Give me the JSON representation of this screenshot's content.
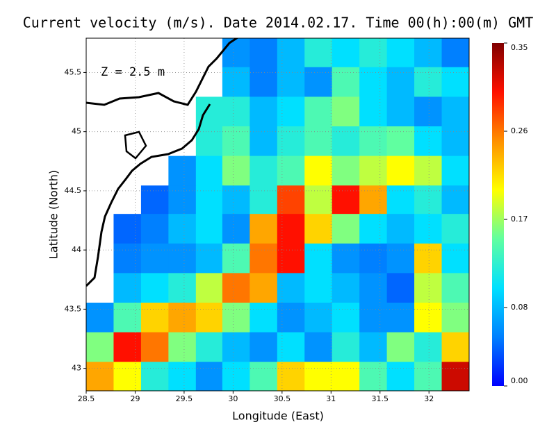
{
  "chart_data": {
    "type": "heatmap",
    "title": "Current velocity (m/s). Date 2014.02.17. Time 00(h):00(m) GMT",
    "annotation": "Z = 2.5 m",
    "x_label": "Longitude (East)",
    "y_label": "Latitude (North)",
    "xlim": [
      28.5,
      32.41
    ],
    "ylim": [
      42.81,
      45.79
    ],
    "xticks": [
      28.5,
      29,
      29.5,
      30,
      30.5,
      31,
      31.5,
      32
    ],
    "yticks": [
      43,
      43.5,
      44,
      44.5,
      45,
      45.5
    ],
    "grid": true,
    "x": [
      28.64,
      28.92,
      29.2,
      29.48,
      29.76,
      30.03,
      30.31,
      30.59,
      30.87,
      31.15,
      31.43,
      31.71,
      31.99,
      32.27
    ],
    "y": [
      45.67,
      45.42,
      45.17,
      44.92,
      44.67,
      44.42,
      44.18,
      43.93,
      43.68,
      43.43,
      43.18,
      42.93
    ],
    "values": [
      [
        null,
        null,
        null,
        null,
        null,
        0.06,
        0.05,
        0.08,
        0.12,
        0.1,
        0.12,
        0.1,
        0.08,
        0.05
      ],
      [
        null,
        null,
        null,
        null,
        null,
        0.08,
        0.05,
        0.08,
        0.06,
        0.14,
        0.1,
        0.08,
        0.12,
        0.1
      ],
      [
        null,
        null,
        null,
        null,
        0.12,
        0.12,
        0.08,
        0.1,
        0.14,
        0.16,
        0.1,
        0.08,
        0.06,
        0.08
      ],
      [
        null,
        null,
        null,
        null,
        0.12,
        0.14,
        0.08,
        0.12,
        0.14,
        0.12,
        0.14,
        0.15,
        0.1,
        0.08
      ],
      [
        null,
        null,
        null,
        0.06,
        0.1,
        0.16,
        0.12,
        0.14,
        0.2,
        0.16,
        0.18,
        0.2,
        0.18,
        0.1
      ],
      [
        null,
        null,
        0.04,
        0.06,
        0.1,
        0.08,
        0.12,
        0.28,
        0.18,
        0.3,
        0.24,
        0.1,
        0.12,
        0.08
      ],
      [
        null,
        0.04,
        0.05,
        0.08,
        0.1,
        0.06,
        0.24,
        0.3,
        0.22,
        0.16,
        0.1,
        0.08,
        0.1,
        0.12
      ],
      [
        null,
        0.05,
        0.06,
        0.06,
        0.08,
        0.14,
        0.26,
        0.3,
        0.1,
        0.06,
        0.05,
        0.06,
        0.22,
        0.1
      ],
      [
        null,
        0.08,
        0.1,
        0.12,
        0.18,
        0.26,
        0.24,
        0.08,
        0.1,
        0.08,
        0.06,
        0.04,
        0.18,
        0.14
      ],
      [
        0.06,
        0.14,
        0.22,
        0.24,
        0.22,
        0.16,
        0.1,
        0.06,
        0.08,
        0.1,
        0.06,
        0.06,
        0.2,
        0.16
      ],
      [
        0.16,
        0.3,
        0.26,
        0.16,
        0.12,
        0.08,
        0.06,
        0.1,
        0.06,
        0.12,
        0.08,
        0.16,
        0.12,
        0.22
      ],
      [
        0.24,
        0.2,
        0.12,
        0.1,
        0.06,
        0.1,
        0.14,
        0.22,
        0.2,
        0.2,
        0.14,
        0.1,
        0.14,
        0.32
      ]
    ],
    "colorbar_lim": [
      0,
      0.35
    ],
    "colorbar_ticks": [
      {
        "value": 0,
        "label": "0.00"
      },
      0.08,
      0.17,
      0.26,
      0.35
    ],
    "colors": [
      "#0000ff",
      "#0080ff",
      "#00e0ff",
      "#60ffa0",
      "#ffff00",
      "#ff9000",
      "#ff1000",
      "#800000"
    ]
  }
}
